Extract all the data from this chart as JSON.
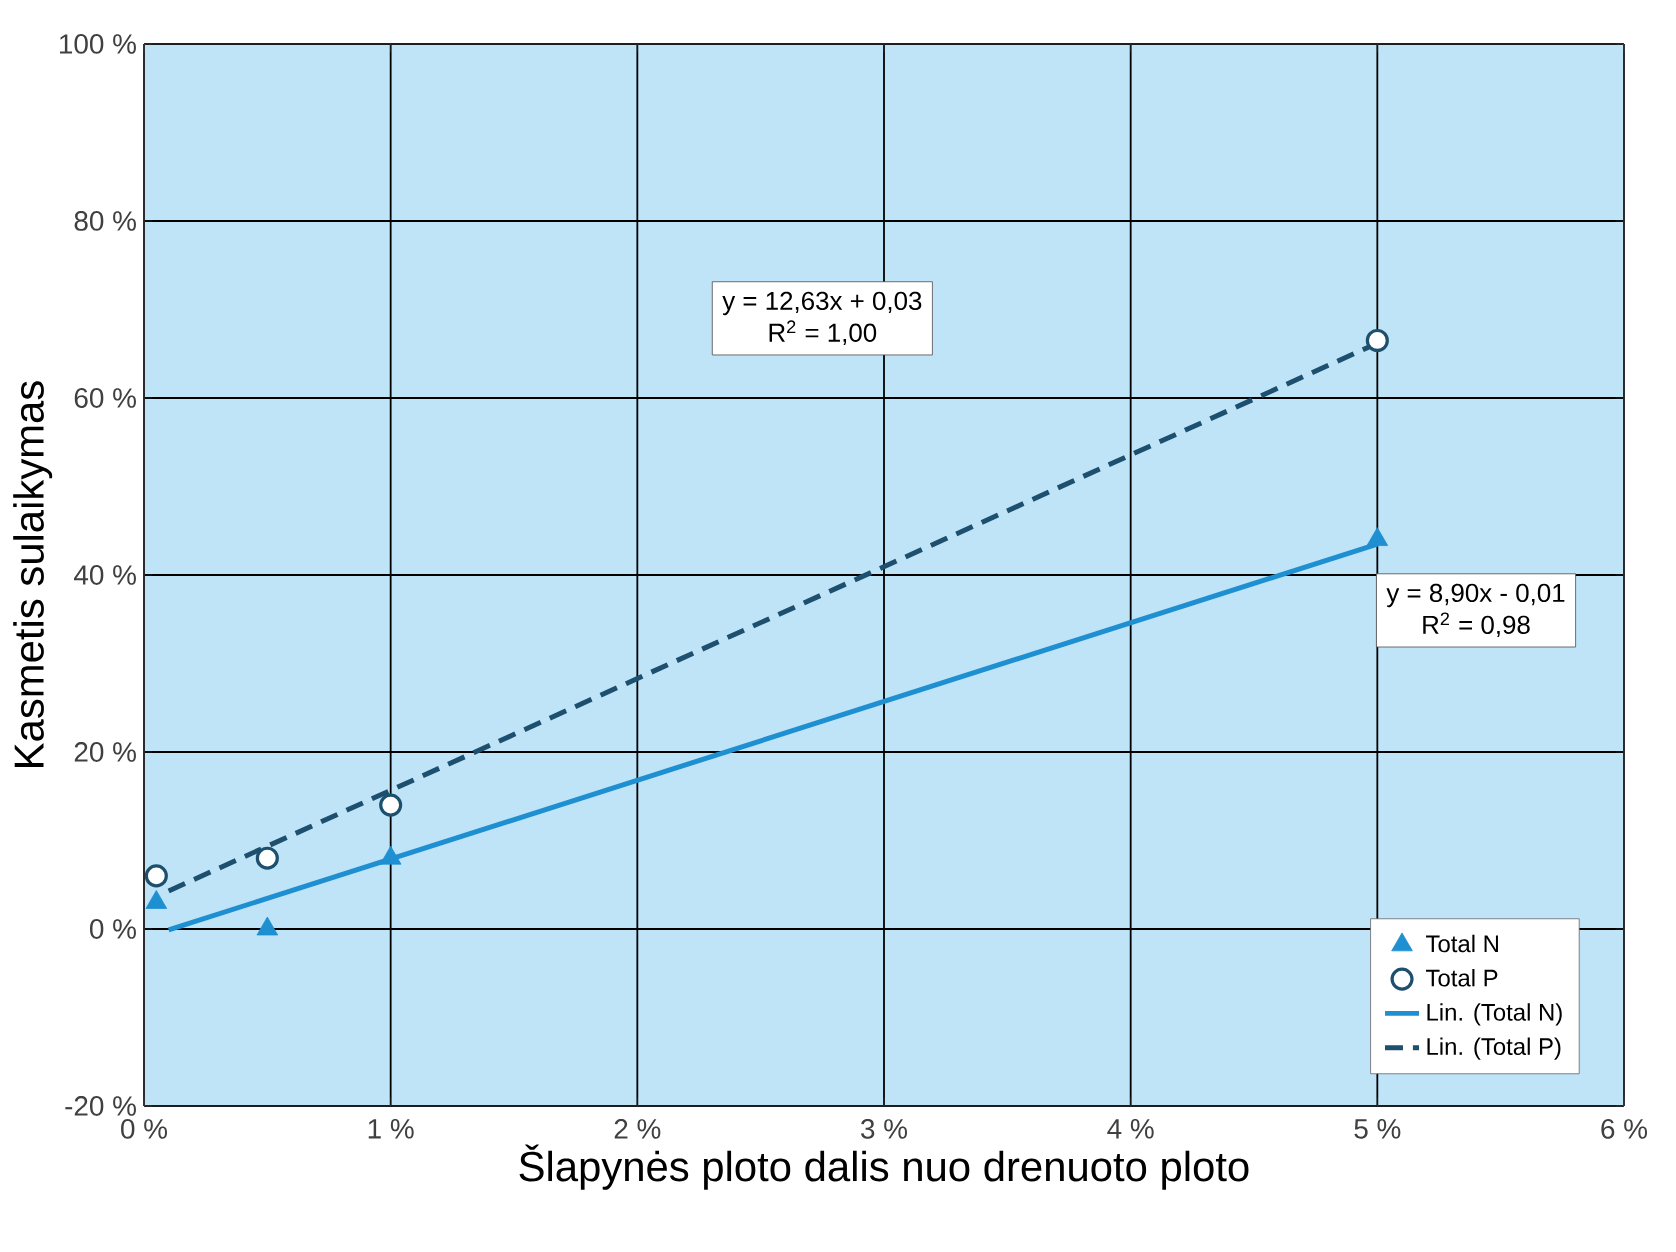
{
  "chart_data": {
    "type": "scatter",
    "xlabel": "Šlapynės ploto dalis nuo drenuoto ploto",
    "ylabel": "Kasmetis sulaikymas",
    "xlim": [
      0,
      6
    ],
    "xticks": [
      {
        "value": 0,
        "label": "0 %"
      },
      {
        "value": 1,
        "label": "1 %"
      },
      {
        "value": 2,
        "label": "2 %"
      },
      {
        "value": 3,
        "label": "3 %"
      },
      {
        "value": 4,
        "label": "4 %"
      },
      {
        "value": 5,
        "label": "5 %"
      },
      {
        "value": 6,
        "label": "6 %"
      }
    ],
    "ylim": [
      -20,
      100
    ],
    "yticks": [
      {
        "value": -20,
        "label": "-20 %"
      },
      {
        "value": 0,
        "label": "0 %"
      },
      {
        "value": 20,
        "label": "20 %"
      },
      {
        "value": 40,
        "label": "40 %"
      },
      {
        "value": 60,
        "label": "60 %"
      },
      {
        "value": 80,
        "label": "80 %"
      },
      {
        "value": 100,
        "label": "100 %"
      }
    ],
    "grid": true,
    "legend": "bottom right",
    "series": [
      {
        "name": "Total N",
        "marker": "triangle",
        "color": "#1e8fd0",
        "x": [
          0.05,
          0.5,
          1,
          5
        ],
        "values": [
          3,
          0,
          8,
          44
        ]
      },
      {
        "name": "Total P",
        "marker": "circle",
        "color": "#1d4f6e",
        "x": [
          0.05,
          0.5,
          1,
          5
        ],
        "values": [
          6,
          8,
          14,
          66.5
        ]
      },
      {
        "name": "Lin. (Total N)",
        "type": "line",
        "line_style": "solid",
        "color": "#1e8fd0",
        "x": [
          0.1,
          5
        ],
        "values": [
          -0.1,
          43.5
        ]
      },
      {
        "name": "Lin. (Total P)",
        "type": "line",
        "line_style": "dashed",
        "color": "#1d4f6e",
        "x": [
          0.1,
          5
        ],
        "values": [
          4.3,
          66.2
        ]
      }
    ],
    "annotations": [
      "y = 12,63x + 0,03",
      "R$^{2}$ = 1,00",
      "y = 8,90x - 0,01",
      "R$^{2}$ = 0,98"
    ]
  }
}
